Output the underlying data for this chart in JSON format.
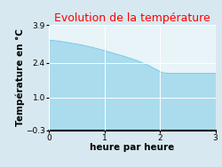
{
  "title": "Evolution de la température",
  "xlabel": "heure par heure",
  "ylabel": "Température en °C",
  "xlim": [
    0,
    3
  ],
  "ylim": [
    -0.3,
    3.9
  ],
  "yticks": [
    -0.3,
    1.0,
    2.4,
    3.9
  ],
  "xticks": [
    0,
    1,
    2,
    3
  ],
  "x": [
    0,
    0.2,
    0.4,
    0.6,
    0.8,
    1.0,
    1.2,
    1.4,
    1.6,
    1.8,
    2.0,
    2.05,
    2.1,
    2.2,
    2.4,
    2.6,
    2.8,
    3.0
  ],
  "y": [
    3.3,
    3.25,
    3.18,
    3.1,
    3.0,
    2.88,
    2.75,
    2.62,
    2.47,
    2.28,
    2.05,
    2.0,
    1.98,
    1.97,
    1.97,
    1.97,
    1.97,
    1.97
  ],
  "line_color": "#7dcce8",
  "fill_color": "#aadcee",
  "background_color": "#d8e8f0",
  "plot_bg_color": "#e8f4f8",
  "title_color": "#ff0000",
  "title_fontsize": 9,
  "axis_label_fontsize": 7.5,
  "tick_fontsize": 6.5,
  "grid_color": "#ffffff",
  "spine_color": "#000000"
}
